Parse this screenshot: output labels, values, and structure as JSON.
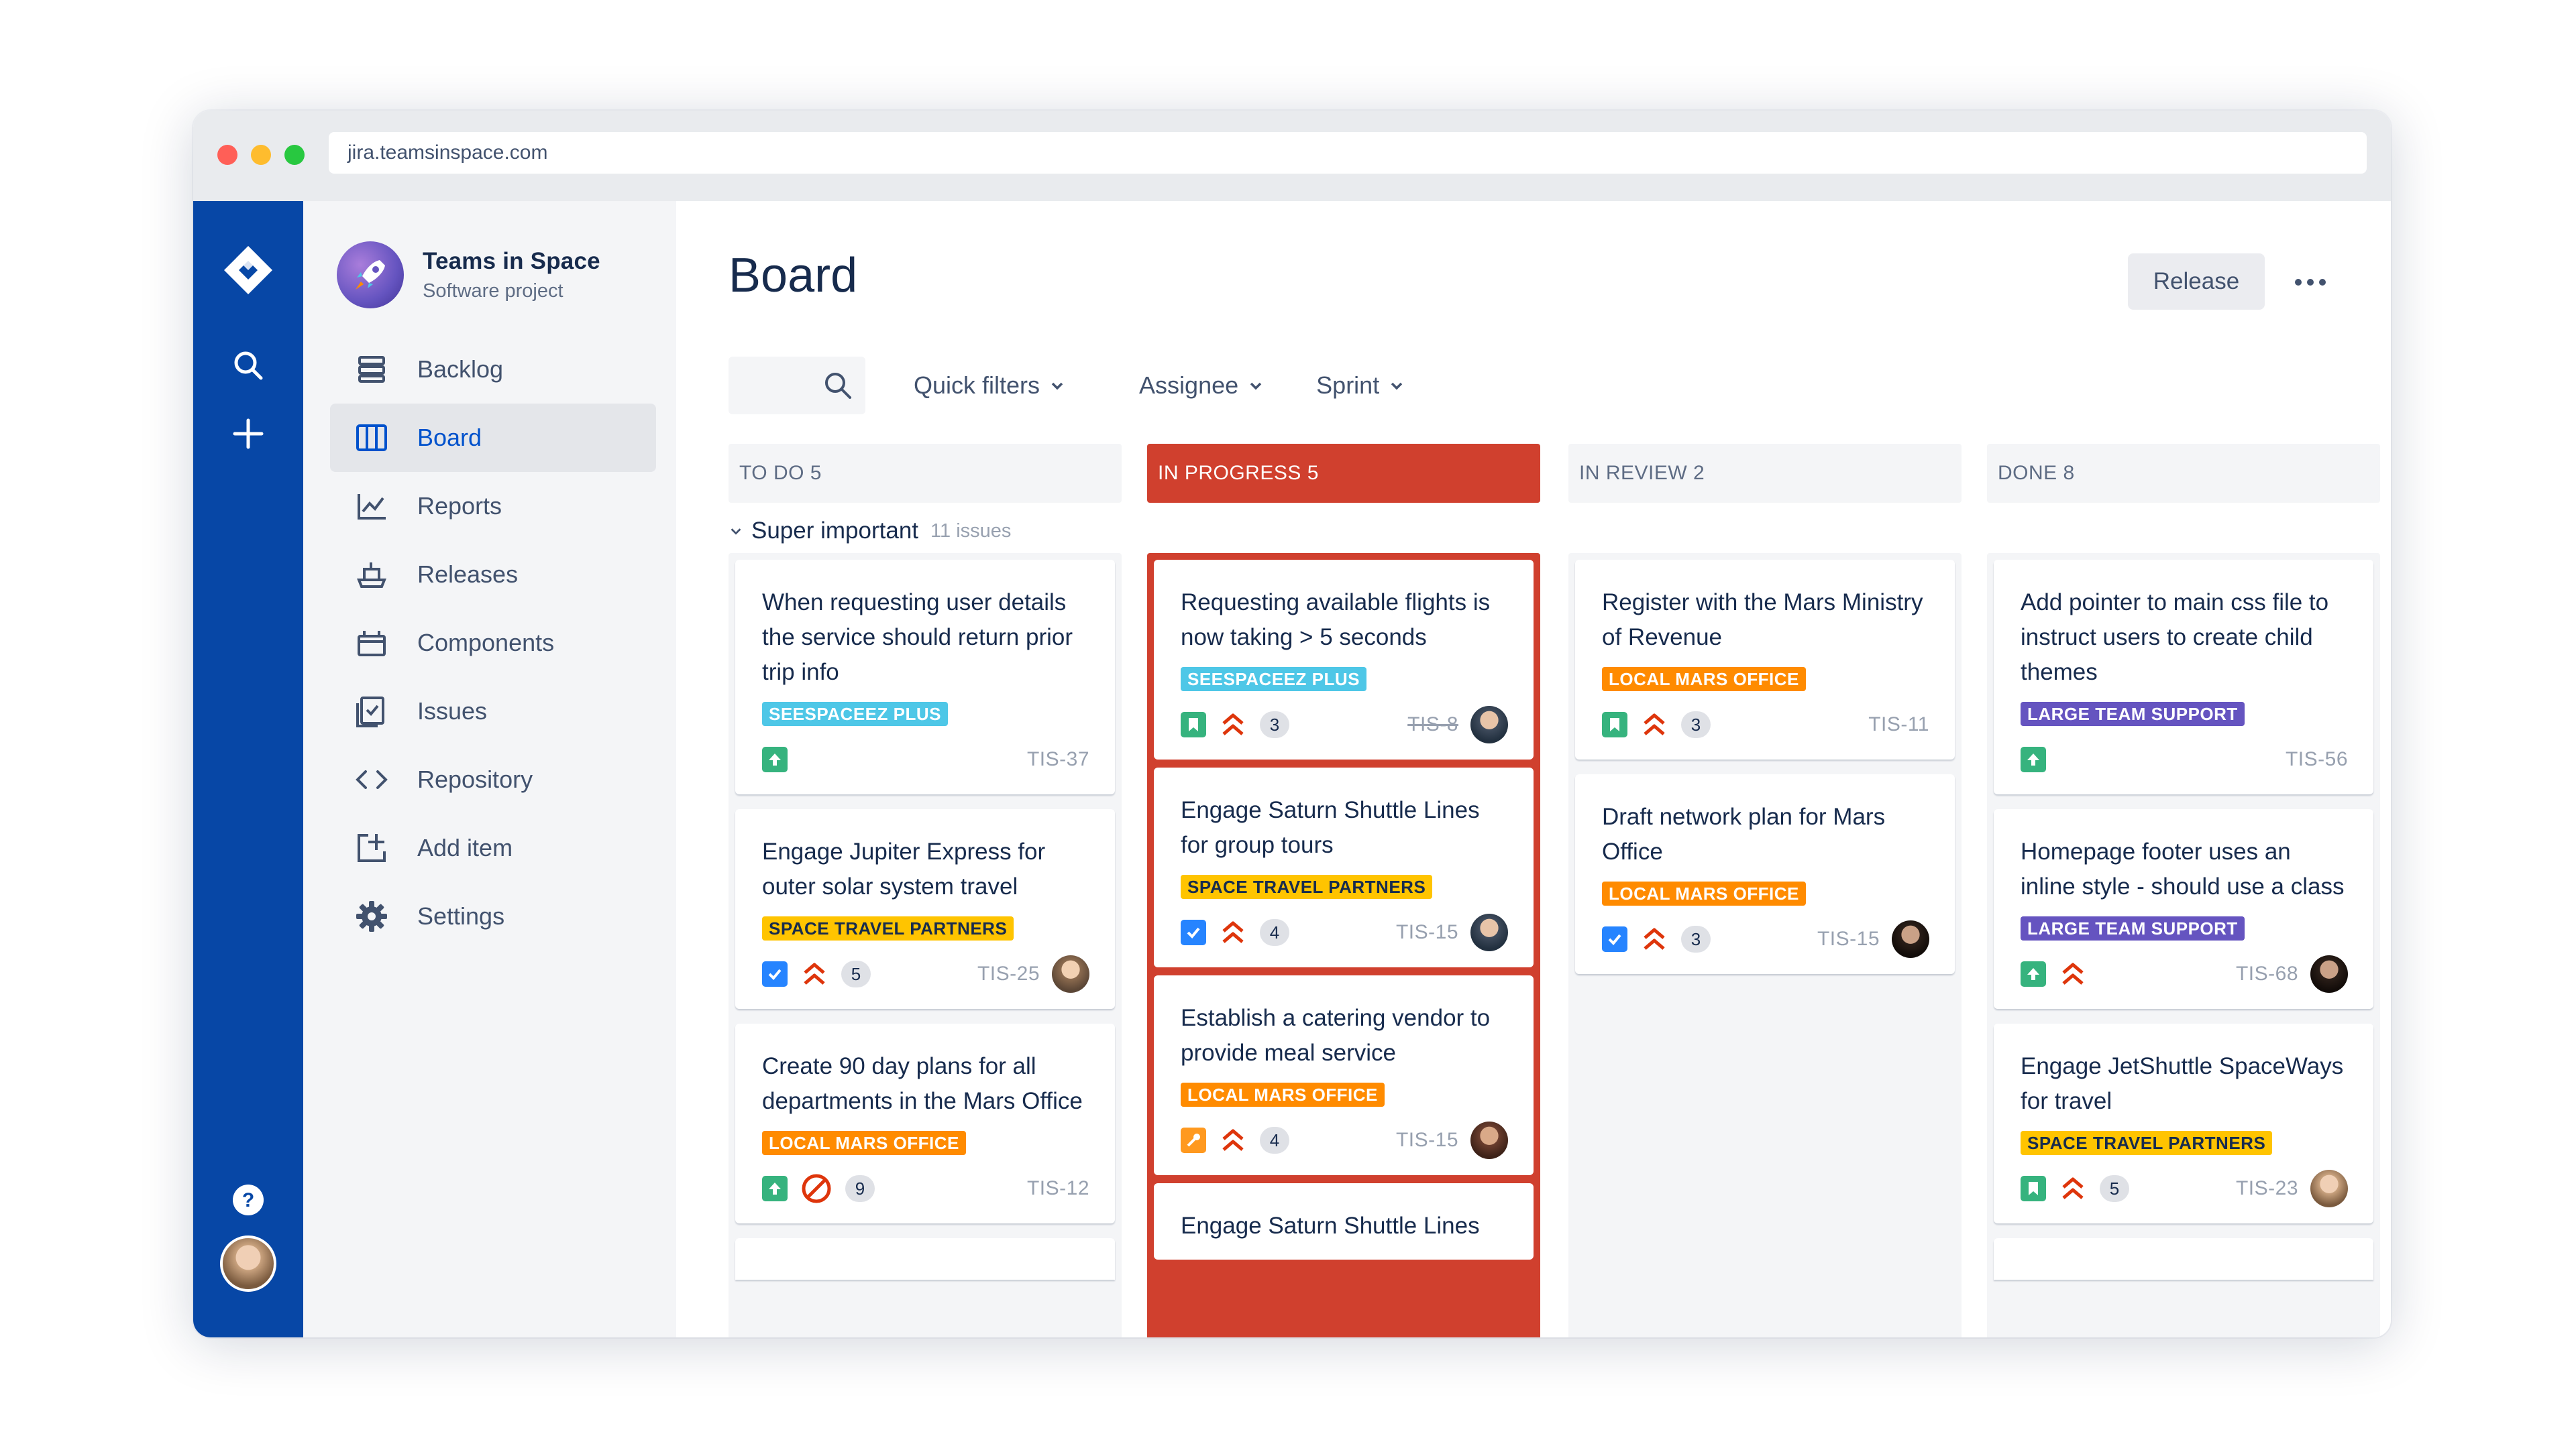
{
  "browser": {
    "url": "jira.teamsinspace.com"
  },
  "colors": {
    "global_nav": "#0747a6",
    "in_progress": "#d0402e",
    "active_nav_text": "#0052cc"
  },
  "global_nav": {
    "icons": [
      "jira-logo-icon",
      "search-icon",
      "plus-icon",
      "help-icon",
      "user-avatar"
    ]
  },
  "project": {
    "name": "Teams in Space",
    "type": "Software project"
  },
  "sidebar": {
    "items": [
      {
        "label": "Backlog",
        "icon": "backlog-icon",
        "active": false
      },
      {
        "label": "Board",
        "icon": "board-icon",
        "active": true
      },
      {
        "label": "Reports",
        "icon": "reports-icon",
        "active": false
      },
      {
        "label": "Releases",
        "icon": "releases-icon",
        "active": false
      },
      {
        "label": "Components",
        "icon": "components-icon",
        "active": false
      },
      {
        "label": "Issues",
        "icon": "issues-icon",
        "active": false
      },
      {
        "label": "Repository",
        "icon": "code-icon",
        "active": false
      },
      {
        "label": "Add item",
        "icon": "add-item-icon",
        "active": false
      },
      {
        "label": "Settings",
        "icon": "gear-icon",
        "active": false
      }
    ]
  },
  "header": {
    "title": "Board",
    "release_label": "Release"
  },
  "filters": {
    "quick_filters": "Quick filters",
    "assignee": "Assignee",
    "sprint": "Sprint"
  },
  "swimlane": {
    "title": "Super important",
    "count": "11 issues"
  },
  "columns": [
    {
      "header": "TO DO 5",
      "cards": [
        {
          "title": "When requesting user details the service should return prior trip info",
          "label": "SEESPACEEZ PLUS",
          "type": "story",
          "key": "TIS-37"
        },
        {
          "title": "Engage Jupiter Express for outer solar system travel",
          "label": "SPACE TRAVEL PARTNERS",
          "type": "task",
          "priority": "highest",
          "estimate": "5",
          "key": "TIS-25"
        },
        {
          "title": "Create 90 day plans for all departments in the Mars Office",
          "label": "LOCAL MARS OFFICE",
          "type": "story",
          "priority": "blocker",
          "estimate": "9",
          "key": "TIS-12"
        }
      ]
    },
    {
      "header": "IN PROGRESS  5",
      "cards": [
        {
          "title": "Requesting available flights is now taking > 5 seconds",
          "label": "SEESPACEEZ PLUS",
          "type": "bookmark",
          "priority": "highest",
          "estimate": "3",
          "key": "TIS-8"
        },
        {
          "title": "Engage Saturn Shuttle Lines for group tours",
          "label": "SPACE TRAVEL PARTNERS",
          "type": "task",
          "priority": "highest",
          "estimate": "4",
          "key": "TIS-15"
        },
        {
          "title": "Establish a catering vendor to provide meal service",
          "label": "LOCAL MARS OFFICE",
          "type": "improvement",
          "priority": "highest",
          "estimate": "4",
          "key": "TIS-15"
        },
        {
          "title": "Engage Saturn Shuttle Lines"
        }
      ]
    },
    {
      "header": "IN REVIEW 2",
      "cards": [
        {
          "title": "Register with the Mars Ministry of Revenue",
          "label": "LOCAL MARS OFFICE",
          "type": "bookmark",
          "priority": "highest",
          "estimate": "3",
          "key": "TIS-11"
        },
        {
          "title": "Draft network plan for Mars Office",
          "label": "LOCAL MARS OFFICE",
          "type": "task",
          "priority": "highest",
          "estimate": "3",
          "key": "TIS-15"
        }
      ]
    },
    {
      "header": "DONE 8",
      "cards": [
        {
          "title": "Add pointer to main css file to instruct users to create child themes",
          "label": "LARGE TEAM SUPPORT",
          "type": "story",
          "key": "TIS-56"
        },
        {
          "title": "Homepage footer uses an inline style - should use a class",
          "label": "LARGE TEAM SUPPORT",
          "type": "story",
          "priority": "highest",
          "key": "TIS-68"
        },
        {
          "title": "Engage JetShuttle SpaceWays for travel",
          "label": "SPACE TRAVEL PARTNERS",
          "type": "bookmark",
          "priority": "highest",
          "estimate": "5",
          "key": "TIS-23"
        }
      ]
    }
  ]
}
